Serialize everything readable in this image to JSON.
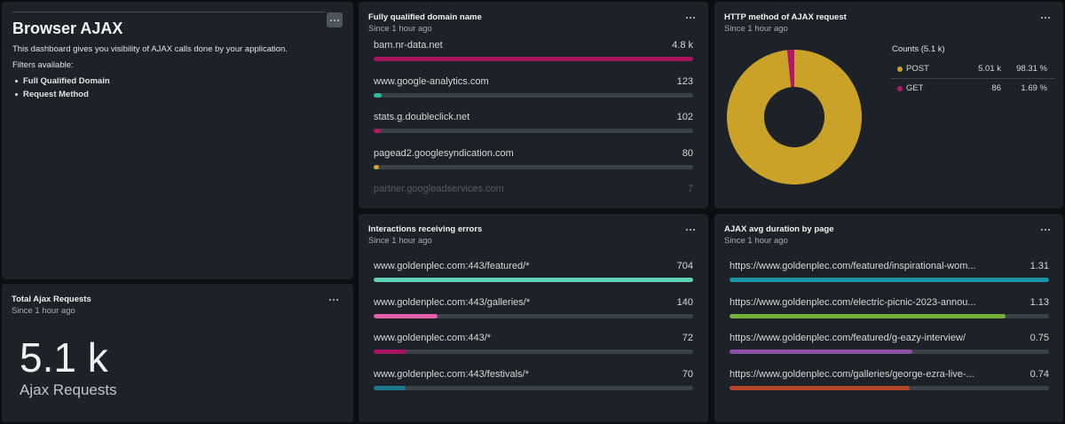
{
  "markdown": {
    "title": "Browser AJAX",
    "description": "This dashboard gives you visibility of AJAX calls done by your application.",
    "filters_label": "Filters available:",
    "filters": [
      "Full Qualified Domain",
      "Request Method"
    ]
  },
  "total_requests": {
    "title": "Total Ajax Requests",
    "subtitle": "Since 1 hour ago",
    "value": "5.1 k",
    "unit": "Ajax Requests"
  },
  "fqdn": {
    "title": "Fully qualified domain name",
    "subtitle": "Since 1 hour ago",
    "items": [
      {
        "name": "bam.nr-data.net",
        "value": 4800,
        "value_label": "4.8 k",
        "color": "#a8135f"
      },
      {
        "name": "www.google-analytics.com",
        "value": 123,
        "color": "#2fb5a4"
      },
      {
        "name": "stats.g.doubleclick.net",
        "value": 102,
        "color": "#b0175f"
      },
      {
        "name": "pagead2.googlesyndication.com",
        "value": 80,
        "color": "#d4a72c"
      },
      {
        "name": "partner.googleadservices.com",
        "value": 7,
        "color": "#6a4fc0"
      }
    ]
  },
  "http_method": {
    "title": "HTTP method of AJAX request",
    "subtitle": "Since 1 hour ago",
    "legend_title": "Counts (5.1 k)",
    "slices": [
      {
        "name": "POST",
        "value": "5.01 k",
        "percent": 98.31,
        "percent_label": "98.31 %",
        "color": "#c9a227"
      },
      {
        "name": "GET",
        "value": "86",
        "percent": 1.69,
        "percent_label": "1.69 %",
        "color": "#b5166c"
      }
    ]
  },
  "errors": {
    "title": "Interactions receiving errors",
    "subtitle": "Since 1 hour ago",
    "items": [
      {
        "name": "www.goldenplec.com:443/featured/*",
        "value": 704,
        "color": "#5ed3b8"
      },
      {
        "name": "www.goldenplec.com:443/galleries/*",
        "value": 140,
        "color": "#e45fa8"
      },
      {
        "name": "www.goldenplec.com:443/*",
        "value": 72,
        "color": "#a8135f"
      },
      {
        "name": "www.goldenplec.com:443/festivals/*",
        "value": 70,
        "color": "#1a7a8c"
      }
    ]
  },
  "duration": {
    "title": "AJAX avg duration by page",
    "subtitle": "Since 1 hour ago",
    "items": [
      {
        "name": "https://www.goldenplec.com/featured/inspirational-wom...",
        "value": 1.31,
        "color": "#1a95a8"
      },
      {
        "name": "https://www.goldenplec.com/electric-picnic-2023-annou...",
        "value": 1.13,
        "color": "#75b03c"
      },
      {
        "name": "https://www.goldenplec.com/featured/g-eazy-interview/",
        "value": 0.75,
        "color": "#8c4fa6"
      },
      {
        "name": "https://www.goldenplec.com/galleries/george-ezra-live-...",
        "value": 0.74,
        "color": "#b5462c"
      }
    ]
  }
}
